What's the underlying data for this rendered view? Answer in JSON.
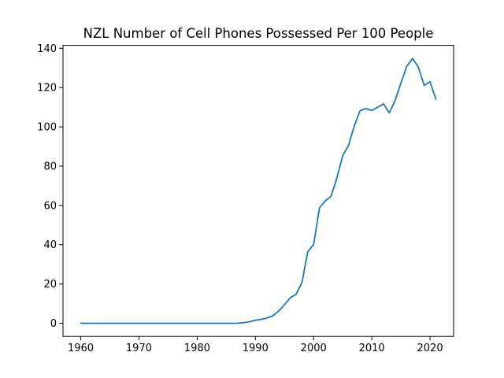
{
  "chart_data": {
    "type": "line",
    "title": "NZL Number of Cell Phones Possessed Per 100 People",
    "xlabel": "",
    "ylabel": "",
    "xlim": [
      1956.95,
      2024.05
    ],
    "ylim": [
      -6.7,
      141.5
    ],
    "xticks": [
      1960,
      1970,
      1980,
      1990,
      2000,
      2010,
      2020
    ],
    "yticks": [
      0,
      20,
      40,
      60,
      80,
      100,
      120,
      140
    ],
    "grid": false,
    "line_color": "#1f77b4",
    "series": [
      {
        "x": [
          1960,
          1961,
          1962,
          1963,
          1964,
          1965,
          1966,
          1967,
          1968,
          1969,
          1970,
          1971,
          1972,
          1973,
          1974,
          1975,
          1976,
          1977,
          1978,
          1979,
          1980,
          1981,
          1982,
          1983,
          1984,
          1985,
          1986,
          1987,
          1988,
          1989,
          1990,
          1991,
          1992,
          1993,
          1994,
          1995,
          1996,
          1997,
          1998,
          1999,
          2000,
          2001,
          2002,
          2003,
          2004,
          2005,
          2006,
          2007,
          2008,
          2009,
          2010,
          2011,
          2012,
          2013,
          2014,
          2015,
          2016,
          2017,
          2018,
          2019,
          2020,
          2021
        ],
        "y": [
          0,
          0,
          0,
          0,
          0,
          0,
          0,
          0,
          0,
          0,
          0,
          0,
          0,
          0,
          0,
          0,
          0,
          0,
          0,
          0,
          0,
          0,
          0,
          0,
          0,
          0,
          0,
          0.05,
          0.3,
          0.8,
          1.5,
          2.0,
          2.7,
          3.8,
          6.2,
          9.5,
          13.0,
          14.8,
          20.8,
          36.5,
          40.0,
          58.7,
          62.3,
          64.7,
          74.0,
          85.3,
          90.6,
          100.6,
          108.3,
          109.3,
          108.3,
          110.0,
          111.7,
          107.1,
          113.4,
          122.3,
          130.8,
          134.8,
          130.4,
          121.1,
          123.0,
          114.2
        ]
      }
    ]
  }
}
